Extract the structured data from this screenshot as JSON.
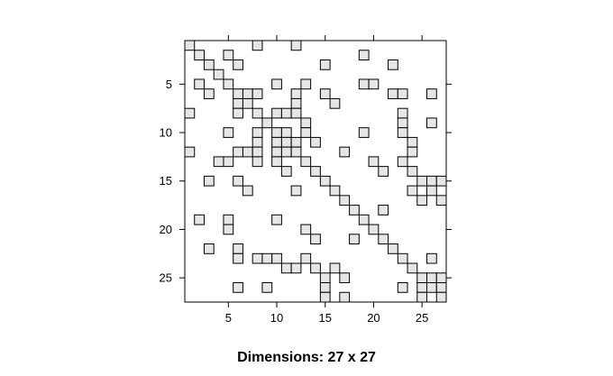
{
  "chart_data": {
    "type": "heatmap",
    "title": "",
    "caption": "Dimensions: 27 x 27",
    "rows": 27,
    "cols": 27,
    "x_ticks": [
      5,
      10,
      15,
      20,
      25
    ],
    "y_ticks": [
      5,
      10,
      15,
      20,
      25
    ],
    "x_tick_labels": [
      "5",
      "10",
      "15",
      "20",
      "25"
    ],
    "y_tick_labels": [
      "5",
      "10",
      "15",
      "20",
      "25"
    ],
    "cell_fill": "#e6e6e6",
    "cell_stroke": "#000000",
    "nonzero": [
      [
        1,
        1
      ],
      [
        1,
        8
      ],
      [
        1,
        12
      ],
      [
        2,
        2
      ],
      [
        2,
        5
      ],
      [
        2,
        19
      ],
      [
        3,
        3
      ],
      [
        3,
        6
      ],
      [
        3,
        15
      ],
      [
        3,
        22
      ],
      [
        4,
        4
      ],
      [
        5,
        2
      ],
      [
        5,
        5
      ],
      [
        5,
        10
      ],
      [
        5,
        13
      ],
      [
        5,
        19
      ],
      [
        5,
        20
      ],
      [
        6,
        3
      ],
      [
        6,
        6
      ],
      [
        6,
        7
      ],
      [
        6,
        8
      ],
      [
        6,
        12
      ],
      [
        6,
        15
      ],
      [
        6,
        22
      ],
      [
        6,
        23
      ],
      [
        6,
        26
      ],
      [
        7,
        6
      ],
      [
        7,
        7
      ],
      [
        7,
        12
      ],
      [
        7,
        16
      ],
      [
        8,
        1
      ],
      [
        8,
        6
      ],
      [
        8,
        8
      ],
      [
        8,
        10
      ],
      [
        8,
        11
      ],
      [
        8,
        12
      ],
      [
        8,
        23
      ],
      [
        9,
        9
      ],
      [
        9,
        13
      ],
      [
        9,
        23
      ],
      [
        9,
        26
      ],
      [
        10,
        5
      ],
      [
        10,
        8
      ],
      [
        10,
        10
      ],
      [
        10,
        11
      ],
      [
        10,
        13
      ],
      [
        10,
        19
      ],
      [
        10,
        23
      ],
      [
        11,
        8
      ],
      [
        11,
        10
      ],
      [
        11,
        11
      ],
      [
        11,
        12
      ],
      [
        11,
        14
      ],
      [
        11,
        24
      ],
      [
        12,
        1
      ],
      [
        12,
        6
      ],
      [
        12,
        7
      ],
      [
        12,
        8
      ],
      [
        12,
        10
      ],
      [
        12,
        11
      ],
      [
        12,
        12
      ],
      [
        12,
        17
      ],
      [
        12,
        24
      ],
      [
        13,
        4
      ],
      [
        13,
        5
      ],
      [
        13,
        8
      ],
      [
        13,
        10
      ],
      [
        13,
        13
      ],
      [
        13,
        20
      ],
      [
        13,
        23
      ],
      [
        14,
        11
      ],
      [
        14,
        14
      ],
      [
        14,
        21
      ],
      [
        14,
        24
      ],
      [
        15,
        3
      ],
      [
        15,
        6
      ],
      [
        15,
        15
      ],
      [
        15,
        25
      ],
      [
        15,
        26
      ],
      [
        15,
        27
      ],
      [
        16,
        7
      ],
      [
        16,
        12
      ],
      [
        16,
        16
      ],
      [
        16,
        24
      ],
      [
        16,
        26
      ],
      [
        17,
        17
      ],
      [
        17,
        25
      ],
      [
        17,
        27
      ],
      [
        18,
        18
      ],
      [
        18,
        21
      ],
      [
        19,
        2
      ],
      [
        19,
        5
      ],
      [
        19,
        10
      ],
      [
        19,
        19
      ],
      [
        20,
        5
      ],
      [
        20,
        13
      ],
      [
        20,
        20
      ],
      [
        21,
        14
      ],
      [
        21,
        18
      ],
      [
        21,
        21
      ],
      [
        22,
        3
      ],
      [
        22,
        6
      ],
      [
        22,
        22
      ],
      [
        23,
        6
      ],
      [
        23,
        8
      ],
      [
        23,
        9
      ],
      [
        23,
        10
      ],
      [
        23,
        13
      ],
      [
        23,
        23
      ],
      [
        23,
        26
      ],
      [
        24,
        11
      ],
      [
        24,
        12
      ],
      [
        24,
        14
      ],
      [
        24,
        16
      ],
      [
        24,
        24
      ],
      [
        25,
        15
      ],
      [
        25,
        17
      ],
      [
        25,
        25
      ],
      [
        25,
        26
      ],
      [
        25,
        27
      ],
      [
        26,
        6
      ],
      [
        26,
        9
      ],
      [
        26,
        15
      ],
      [
        26,
        23
      ],
      [
        26,
        25
      ],
      [
        26,
        26
      ],
      [
        26,
        27
      ],
      [
        27,
        15
      ],
      [
        27,
        17
      ],
      [
        27,
        25
      ],
      [
        27,
        27
      ]
    ]
  }
}
